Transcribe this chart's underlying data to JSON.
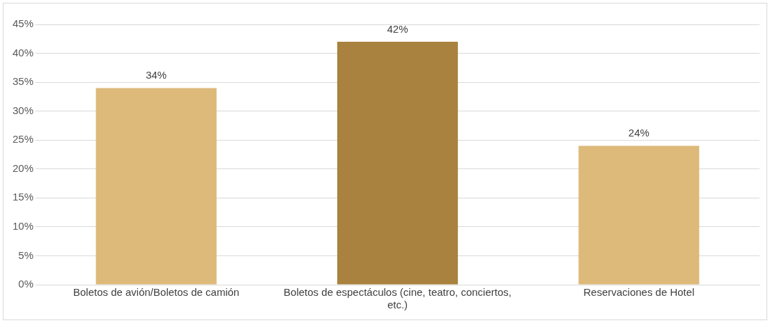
{
  "chart_data": {
    "type": "bar",
    "categories": [
      "Boletos de avión/Boletos de camión",
      "Boletos de espectáculos (cine, teatro, conciertos, etc.)",
      "Reservaciones de Hotel"
    ],
    "values": [
      34,
      42,
      24
    ],
    "colors": [
      "#ddb97a",
      "#a8823e",
      "#ddb97a"
    ],
    "value_labels": [
      "34%",
      "42%",
      "24%"
    ],
    "ylim": [
      0,
      45
    ],
    "yticks": [
      {
        "value": 0,
        "label": "0%"
      },
      {
        "value": 5,
        "label": "5%"
      },
      {
        "value": 10,
        "label": "10%"
      },
      {
        "value": 15,
        "label": "15%"
      },
      {
        "value": 20,
        "label": "20%"
      },
      {
        "value": 25,
        "label": "25%"
      },
      {
        "value": 30,
        "label": "30%"
      },
      {
        "value": 35,
        "label": "35%"
      },
      {
        "value": 40,
        "label": "40%"
      },
      {
        "value": 45,
        "label": "45%"
      }
    ],
    "grid": "y"
  }
}
